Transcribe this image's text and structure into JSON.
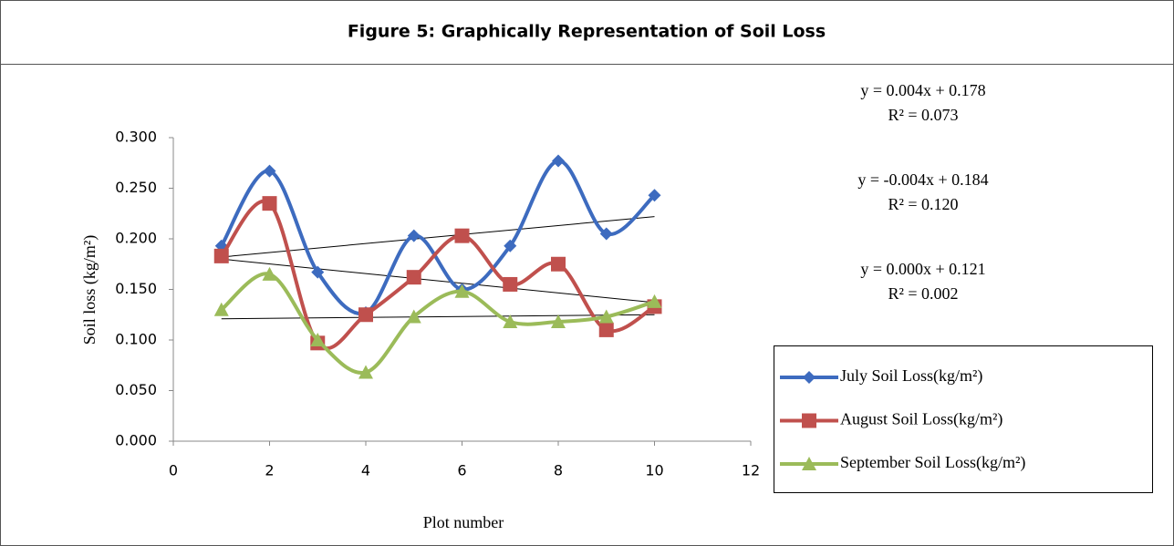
{
  "chart_data": {
    "type": "line",
    "title": "Figure 5: Graphically Representation of Soil Loss",
    "x_label": "Plot number",
    "y_label": "Soil loss (kg/m²)",
    "x": [
      1,
      2,
      3,
      4,
      5,
      6,
      7,
      8,
      9,
      10
    ],
    "series": [
      {
        "name": "July Soil Loss(kg/m²)",
        "color": "#3d6bbf",
        "marker": "diamond",
        "values": [
          0.193,
          0.267,
          0.167,
          0.127,
          0.203,
          0.15,
          0.193,
          0.277,
          0.205,
          0.243
        ]
      },
      {
        "name": "August Soil Loss(kg/m²)",
        "color": "#c0504d",
        "marker": "square",
        "values": [
          0.183,
          0.235,
          0.097,
          0.125,
          0.162,
          0.203,
          0.155,
          0.175,
          0.11,
          0.133
        ]
      },
      {
        "name": "September Soil Loss(kg/m²)",
        "color": "#9bbb59",
        "marker": "triangle",
        "values": [
          0.13,
          0.165,
          0.1,
          0.068,
          0.123,
          0.148,
          0.118,
          0.118,
          0.123,
          0.138
        ]
      }
    ],
    "trendlines": [
      {
        "x": [
          1,
          10
        ],
        "values": [
          0.182,
          0.222
        ]
      },
      {
        "x": [
          1,
          10
        ],
        "values": [
          0.18,
          0.137
        ]
      },
      {
        "x": [
          1,
          10
        ],
        "values": [
          0.121,
          0.125
        ]
      }
    ],
    "annotations": [
      {
        "equation": "y = 0.004x + 0.178",
        "r2": "R² = 0.073"
      },
      {
        "equation": "y = -0.004x + 0.184",
        "r2": "R² = 0.120"
      },
      {
        "equation": "y = 0.000x + 0.121",
        "r2": "R² = 0.002"
      }
    ],
    "xlim": [
      0,
      12
    ],
    "xticks": [
      0,
      2,
      4,
      6,
      8,
      10,
      12
    ],
    "ylim": [
      0,
      0.3
    ],
    "yticks": [
      {
        "value": 0,
        "label": "0.000"
      },
      {
        "value": 0.05,
        "label": "0.050"
      },
      {
        "value": 0.1,
        "label": "0.100"
      },
      {
        "value": 0.15,
        "label": "0.150"
      },
      {
        "value": 0.2,
        "label": "0.200"
      },
      {
        "value": 0.25,
        "label": "0.250"
      },
      {
        "value": 0.3,
        "label": "0.300"
      }
    ],
    "grid": false,
    "smooth": true,
    "legend": "right"
  }
}
